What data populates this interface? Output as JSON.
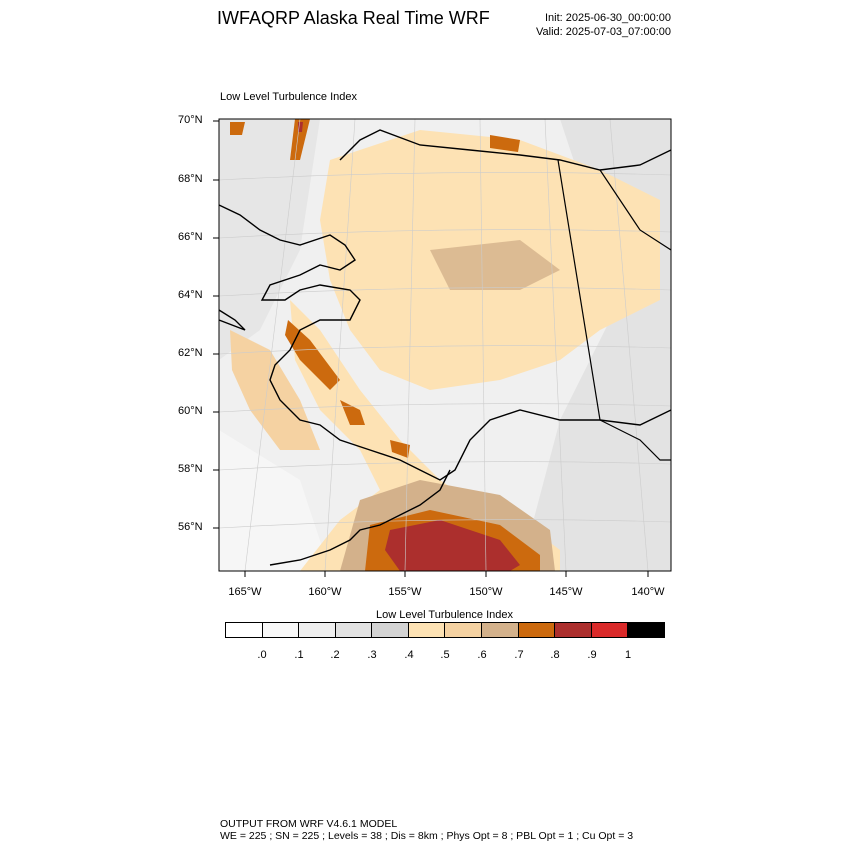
{
  "header": {
    "title": "IWFAQRP Alaska Real Time WRF",
    "init": "Init: 2025-06-30_00:00:00",
    "valid": "Valid: 2025-07-03_07:00:00"
  },
  "map": {
    "field_label": "Low Level Turbulence Index",
    "lat_labels": [
      "70°N",
      "68°N",
      "66°N",
      "64°N",
      "62°N",
      "60°N",
      "58°N",
      "56°N"
    ],
    "lon_labels": [
      "165°W",
      "160°W",
      "155°W",
      "150°W",
      "145°W",
      "140°W"
    ]
  },
  "colorbar": {
    "title": "Low Level Turbulence Index",
    "colors": [
      "#ffffff",
      "#f8f8f8",
      "#efefef",
      "#e2e2e2",
      "#d3d3d3",
      "#fde2b4",
      "#f5d2a2",
      "#d3b18b",
      "#cc6a0e",
      "#ac2f2d",
      "#da2a2a",
      "#000000"
    ],
    "tick_labels": [
      ".0",
      ".1",
      ".2",
      ".3",
      ".4",
      ".5",
      ".6",
      ".7",
      ".8",
      ".9",
      "1"
    ]
  },
  "footer": {
    "line1": "OUTPUT FROM WRF V4.6.1 MODEL",
    "line2": "WE = 225 ; SN = 225 ; Levels = 38 ; Dis = 8km ; Phys Opt = 8 ; PBL Opt = 1 ; Cu Opt = 3"
  }
}
